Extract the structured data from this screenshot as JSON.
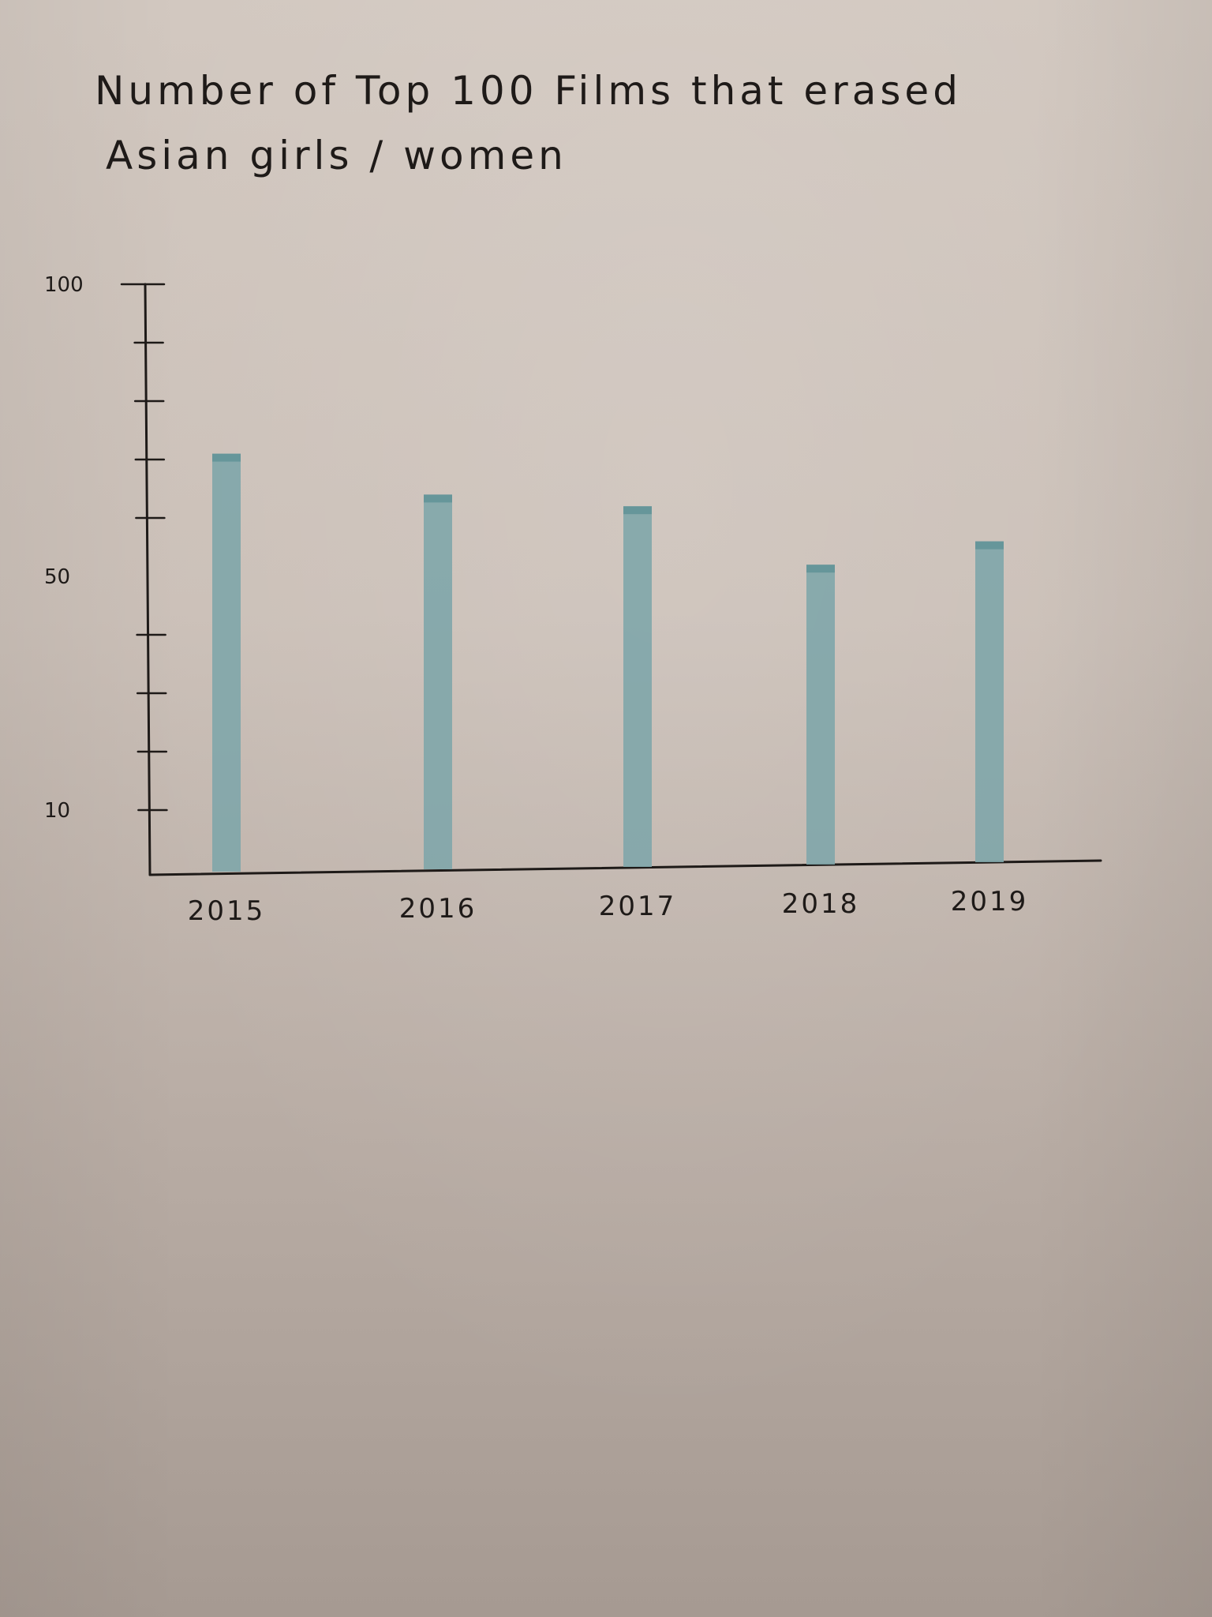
{
  "title_lines": [
    "Number of Top 100 Films that erased",
    "Asian girls / women"
  ],
  "colors": {
    "bar": "#7fa6aa",
    "bar_dark": "#3f7f86",
    "ink": "#1e1a18"
  },
  "chart_data": {
    "type": "bar",
    "title": "Number of Top 100 Films that erased Asian girls / women",
    "xlabel": "",
    "ylabel": "",
    "categories": [
      "2015",
      "2016",
      "2017",
      "2018",
      "2019"
    ],
    "values": [
      71,
      64,
      62,
      52,
      56
    ],
    "ylim": [
      0,
      100
    ],
    "yticks": [
      {
        "label": "100",
        "value": 100
      },
      {
        "label": "50",
        "value": 50
      },
      {
        "label": "10",
        "value": 10
      }
    ],
    "minor_ticks": [
      90,
      80,
      70,
      60,
      40,
      30,
      20,
      10
    ],
    "grid": false,
    "legend": "none"
  }
}
